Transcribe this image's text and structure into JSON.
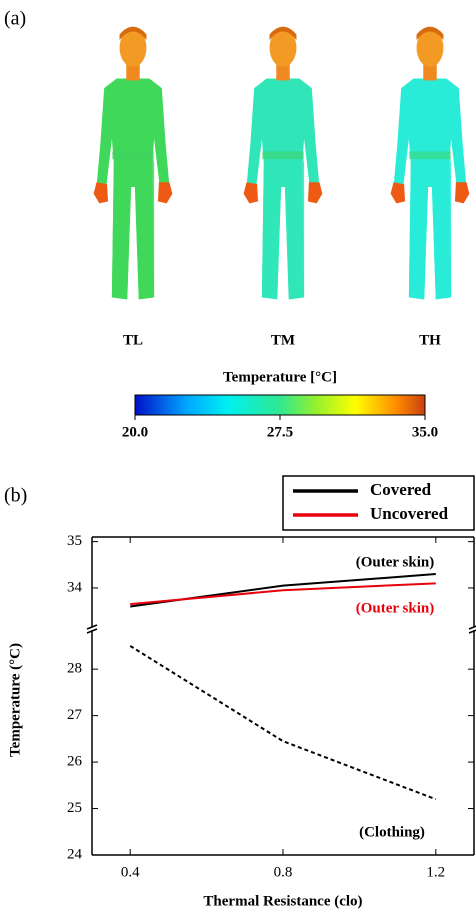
{
  "panel_a": {
    "label": "(a)",
    "figures": [
      "TL",
      "TM",
      "TH"
    ],
    "colorbar": {
      "title": "Temperature [°C]",
      "lim": [
        20,
        35
      ],
      "ticks": [
        {
          "value": 20,
          "label": "20.0"
        },
        {
          "value": 27.5,
          "label": "27.5"
        },
        {
          "value": 35,
          "label": "35.0"
        }
      ]
    }
  },
  "chart_data": {
    "type": "line",
    "label": "(b)",
    "x": [
      0.4,
      0.8,
      1.2
    ],
    "series": [
      {
        "name": "Covered",
        "color": "#000000",
        "values": [
          33.6,
          34.05,
          34.3
        ]
      },
      {
        "name": "Uncovered",
        "color": "#e8000b",
        "values": [
          33.65,
          33.95,
          34.1
        ]
      },
      {
        "color": "#000000",
        "dash": true,
        "values": [
          28.5,
          26.45,
          25.2
        ]
      }
    ],
    "annotations": [
      {
        "text": "(Outer skin)",
        "color": "#000000"
      },
      {
        "text": "(Outer skin)",
        "color": "#e8000b"
      },
      {
        "text": "(Clothing)",
        "color": "#000000"
      }
    ],
    "xlabel": "Thermal Resistance (clo)",
    "ylabel": "Temperature (°C)",
    "xlim": [
      0.3,
      1.3
    ],
    "xticks": [
      0.4,
      0.8,
      1.2
    ],
    "ylim": [
      24,
      35.1
    ],
    "ybreak": [
      28.8,
      33.2
    ],
    "yticks": [
      24,
      25,
      26,
      27,
      28,
      34,
      35
    ],
    "legend": "top-right"
  }
}
